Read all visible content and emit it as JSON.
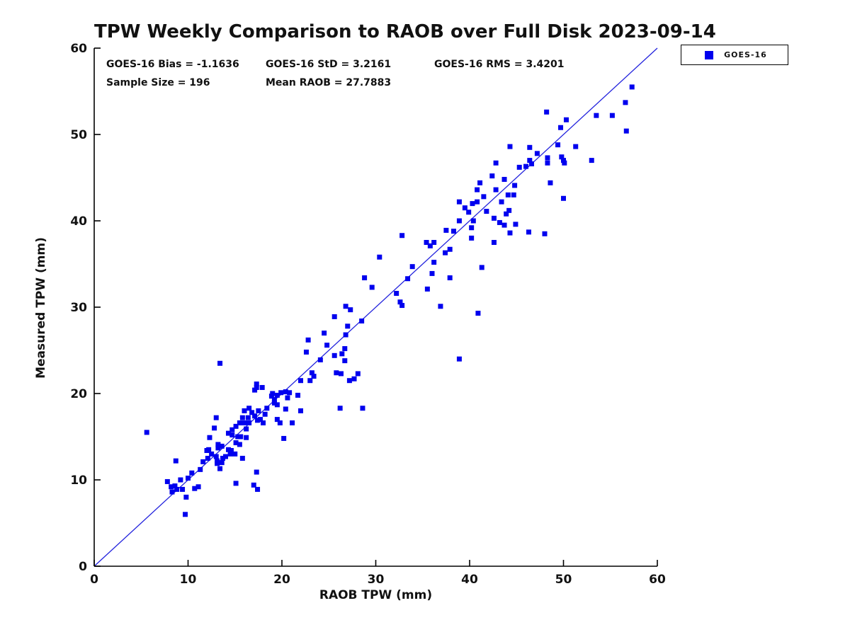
{
  "chart_data": {
    "type": "scatter",
    "title": "TPW Weekly Comparison to RAOB over Full Disk 2023-09-14",
    "xlabel": "RAOB TPW (mm)",
    "ylabel": "Measured TPW (mm)",
    "xlim": [
      0,
      60
    ],
    "ylim": [
      0,
      60
    ],
    "xticks": [
      0,
      10,
      20,
      30,
      40,
      50,
      60
    ],
    "yticks": [
      0,
      10,
      20,
      30,
      40,
      50,
      60
    ],
    "grid": false,
    "legend_position": "top-right",
    "axis_color": "#000000",
    "marker_color": "#0000ee",
    "marker_shape": "square",
    "identity_line": {
      "from": [
        0,
        0
      ],
      "to": [
        60,
        60
      ],
      "color": "#2222dd"
    },
    "stats": {
      "bias": "GOES-16 Bias = -1.1636",
      "std": "GOES-16 StD = 3.2161",
      "rms": "GOES-16 RMS = 3.4201",
      "sample_size": "Sample Size = 196",
      "mean_raob": "Mean RAOB = 27.7883"
    },
    "series": [
      {
        "name": "GOES-16",
        "points": [
          [
            8.7,
            12.2
          ],
          [
            11.6,
            12.1
          ],
          [
            12.1,
            12.5
          ],
          [
            13.1,
            11.9
          ],
          [
            13.6,
            12.0
          ],
          [
            13.4,
            11.3
          ],
          [
            11.3,
            11.2
          ],
          [
            10.0,
            10.2
          ],
          [
            7.8,
            9.8
          ],
          [
            9.2,
            10.0
          ],
          [
            8.2,
            9.2
          ],
          [
            8.6,
            9.3
          ],
          [
            8.8,
            8.9
          ],
          [
            9.4,
            8.9
          ],
          [
            8.3,
            8.6
          ],
          [
            10.7,
            9.0
          ],
          [
            11.1,
            9.2
          ],
          [
            9.8,
            8.0
          ],
          [
            15.1,
            9.6
          ],
          [
            9.7,
            6.0
          ],
          [
            17.0,
            9.4
          ],
          [
            17.4,
            8.9
          ],
          [
            12.0,
            13.4
          ],
          [
            12.2,
            13.5
          ],
          [
            13.2,
            13.7
          ],
          [
            13.2,
            14.1
          ],
          [
            13.6,
            13.9
          ],
          [
            14.3,
            13.5
          ],
          [
            14.6,
            13.4
          ],
          [
            15.0,
            13.0
          ],
          [
            15.8,
            12.5
          ],
          [
            13.0,
            12.7
          ],
          [
            13.7,
            12.5
          ],
          [
            15.1,
            14.3
          ],
          [
            15.5,
            14.1
          ],
          [
            15.6,
            15.0
          ],
          [
            16.2,
            14.9
          ],
          [
            14.3,
            15.4
          ],
          [
            14.7,
            15.2
          ],
          [
            14.7,
            15.8
          ],
          [
            5.6,
            15.5
          ],
          [
            12.3,
            14.9
          ],
          [
            13.0,
            17.2
          ],
          [
            12.8,
            16.0
          ],
          [
            17.3,
            10.9
          ],
          [
            13.4,
            23.5
          ],
          [
            16.0,
            18.0
          ],
          [
            16.5,
            18.3
          ],
          [
            15.8,
            17.2
          ],
          [
            16.4,
            17.2
          ],
          [
            17.1,
            17.4
          ],
          [
            17.7,
            17.0
          ],
          [
            18.0,
            16.6
          ],
          [
            15.1,
            16.2
          ],
          [
            15.5,
            16.6
          ],
          [
            16.0,
            16.6
          ],
          [
            16.5,
            16.6
          ],
          [
            19.8,
            16.6
          ],
          [
            21.1,
            16.6
          ],
          [
            17.3,
            20.7
          ],
          [
            17.9,
            20.7
          ],
          [
            18.9,
            19.7
          ],
          [
            19.2,
            19.3
          ],
          [
            19.9,
            20.1
          ],
          [
            20.4,
            20.2
          ],
          [
            20.8,
            20.1
          ],
          [
            21.7,
            19.8
          ],
          [
            19.2,
            18.9
          ],
          [
            19.5,
            18.7
          ],
          [
            18.4,
            18.3
          ],
          [
            20.4,
            18.2
          ],
          [
            22.0,
            18.0
          ],
          [
            17.1,
            20.4
          ],
          [
            20.2,
            14.8
          ],
          [
            17.5,
            18.0
          ],
          [
            17.3,
            21.1
          ],
          [
            19.5,
            19.8
          ],
          [
            19.5,
            17.0
          ],
          [
            26.8,
            30.1
          ],
          [
            27.3,
            29.7
          ],
          [
            25.6,
            28.9
          ],
          [
            28.5,
            28.4
          ],
          [
            24.5,
            27.0
          ],
          [
            22.8,
            26.2
          ],
          [
            26.8,
            26.8
          ],
          [
            22.6,
            24.8
          ],
          [
            26.7,
            25.2
          ],
          [
            25.6,
            24.4
          ],
          [
            26.4,
            24.6
          ],
          [
            24.1,
            23.9
          ],
          [
            26.7,
            23.8
          ],
          [
            23.2,
            22.4
          ],
          [
            23.4,
            22.0
          ],
          [
            25.8,
            22.4
          ],
          [
            26.3,
            22.3
          ],
          [
            28.1,
            22.3
          ],
          [
            27.2,
            21.5
          ],
          [
            27.7,
            21.7
          ],
          [
            22.0,
            21.5
          ],
          [
            23.0,
            21.5
          ],
          [
            26.2,
            18.3
          ],
          [
            28.6,
            18.3
          ],
          [
            32.8,
            30.2
          ],
          [
            30.4,
            35.8
          ],
          [
            28.8,
            33.4
          ],
          [
            29.6,
            32.3
          ],
          [
            32.2,
            31.6
          ],
          [
            32.6,
            30.6
          ],
          [
            32.8,
            38.3
          ],
          [
            38.9,
            42.2
          ],
          [
            40.3,
            42.0
          ],
          [
            40.8,
            42.2
          ],
          [
            43.4,
            42.2
          ],
          [
            39.9,
            41.0
          ],
          [
            41.8,
            41.1
          ],
          [
            43.9,
            40.8
          ],
          [
            38.9,
            40.0
          ],
          [
            40.4,
            40.0
          ],
          [
            42.6,
            40.3
          ],
          [
            43.2,
            39.8
          ],
          [
            43.7,
            39.5
          ],
          [
            44.9,
            39.6
          ],
          [
            40.2,
            39.2
          ],
          [
            46.3,
            38.7
          ],
          [
            44.3,
            38.6
          ],
          [
            37.5,
            38.9
          ],
          [
            38.3,
            38.8
          ],
          [
            35.4,
            37.5
          ],
          [
            35.8,
            37.1
          ],
          [
            36.2,
            37.5
          ],
          [
            40.2,
            38.0
          ],
          [
            42.6,
            37.5
          ],
          [
            37.4,
            36.3
          ],
          [
            37.9,
            36.7
          ],
          [
            36.2,
            35.2
          ],
          [
            33.9,
            34.7
          ],
          [
            41.3,
            34.6
          ],
          [
            36.0,
            33.9
          ],
          [
            33.4,
            33.3
          ],
          [
            37.9,
            33.4
          ],
          [
            35.5,
            32.1
          ],
          [
            36.9,
            30.1
          ],
          [
            40.9,
            29.3
          ],
          [
            48.0,
            38.5
          ],
          [
            38.9,
            24.0
          ],
          [
            46.4,
            48.5
          ],
          [
            49.4,
            48.8
          ],
          [
            51.3,
            48.6
          ],
          [
            46.4,
            47.0
          ],
          [
            46.6,
            46.6
          ],
          [
            46.0,
            46.3
          ],
          [
            48.3,
            47.3
          ],
          [
            48.3,
            46.7
          ],
          [
            49.8,
            47.4
          ],
          [
            50.0,
            47.0
          ],
          [
            50.1,
            46.7
          ],
          [
            53.0,
            47.0
          ],
          [
            48.6,
            44.4
          ],
          [
            50.0,
            42.6
          ],
          [
            57.3,
            55.5
          ],
          [
            56.6,
            53.7
          ],
          [
            48.2,
            52.6
          ],
          [
            53.5,
            52.2
          ],
          [
            55.2,
            52.2
          ],
          [
            50.3,
            51.7
          ],
          [
            49.7,
            50.8
          ],
          [
            56.7,
            50.4
          ],
          [
            44.3,
            48.6
          ],
          [
            42.8,
            46.7
          ],
          [
            42.4,
            45.2
          ],
          [
            41.1,
            44.4
          ],
          [
            43.7,
            44.8
          ],
          [
            40.8,
            43.6
          ],
          [
            42.8,
            43.6
          ],
          [
            44.1,
            43.0
          ],
          [
            44.2,
            41.2
          ],
          [
            44.8,
            44.1
          ],
          [
            44.7,
            43.0
          ],
          [
            14.0,
            12.7
          ],
          [
            14.5,
            13.0
          ],
          [
            13.1,
            12.2
          ],
          [
            12.5,
            13.0
          ],
          [
            16.8,
            17.8
          ],
          [
            17.4,
            16.9
          ],
          [
            18.2,
            17.6
          ],
          [
            19.0,
            20.0
          ],
          [
            20.6,
            19.5
          ],
          [
            16.2,
            15.9
          ],
          [
            15.3,
            15.0
          ],
          [
            24.8,
            25.6
          ],
          [
            27.0,
            27.8
          ],
          [
            39.5,
            41.5
          ],
          [
            41.5,
            42.8
          ],
          [
            45.3,
            46.2
          ],
          [
            47.2,
            47.8
          ],
          [
            10.4,
            10.8
          ]
        ]
      }
    ]
  },
  "legend": {
    "label": "GOES-16"
  }
}
